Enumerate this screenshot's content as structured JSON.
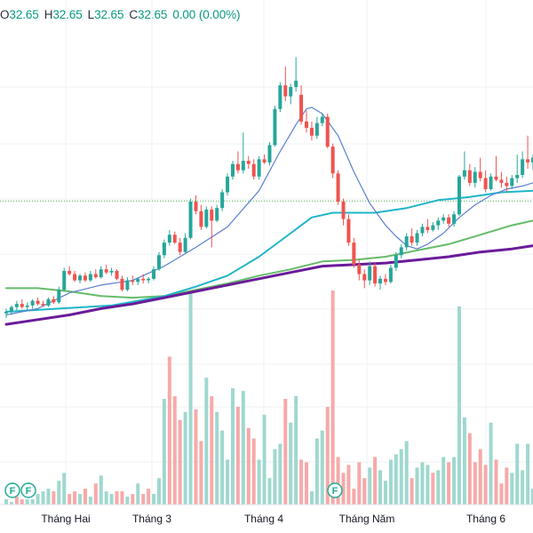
{
  "legend": {
    "o_label": "O",
    "o_value": "32.65",
    "h_label": "H",
    "h_value": "32.65",
    "l_label": "L",
    "l_value": "32.65",
    "c_label": "C",
    "c_value": "32.65",
    "change": "0.00 (0.00%)"
  },
  "colors": {
    "up": "#26a69a",
    "down": "#ef5350",
    "vol_up": "#9fd8cf",
    "vol_down": "#f7a9a9",
    "ma_blue": "#5b7fcf",
    "ma_cyan": "#1fb5c7",
    "ma_green": "#66bb6a",
    "ma_purple": "#6a1b9a",
    "price_line": "#4caf50",
    "marker": "#22ab94"
  },
  "markers": [
    {
      "label": "F",
      "x": 14
    },
    {
      "label": "F",
      "x": 32
    },
    {
      "label": "F",
      "x": 377
    }
  ],
  "chart_data": {
    "type": "candlestick",
    "x_ticks": [
      {
        "label": "Tháng Hai",
        "x": 74
      },
      {
        "label": "Tháng 3",
        "x": 171
      },
      {
        "label": "Tháng 4",
        "x": 297
      },
      {
        "label": "Tháng Năm",
        "x": 413
      },
      {
        "label": "Tháng 6",
        "x": 547
      }
    ],
    "price_line": 32.65,
    "price_range": [
      23.0,
      43.0
    ],
    "candles": [
      [
        0,
        25.5,
        25.8,
        25.2,
        25.6
      ],
      [
        1,
        25.6,
        26.0,
        25.4,
        25.9
      ],
      [
        2,
        25.9,
        26.3,
        25.7,
        26.1
      ],
      [
        3,
        26.1,
        26.4,
        25.8,
        25.9
      ],
      [
        4,
        25.9,
        26.2,
        25.7,
        26.0
      ],
      [
        5,
        26.0,
        26.4,
        25.8,
        26.3
      ],
      [
        6,
        26.3,
        26.5,
        26.0,
        26.1
      ],
      [
        7,
        26.1,
        26.3,
        25.9,
        26.0
      ],
      [
        8,
        26.0,
        26.5,
        25.9,
        26.4
      ],
      [
        9,
        26.4,
        26.6,
        26.1,
        26.2
      ],
      [
        10,
        26.2,
        27.2,
        26.1,
        27.0
      ],
      [
        11,
        27.0,
        28.4,
        26.9,
        28.2
      ],
      [
        12,
        28.2,
        28.5,
        27.9,
        28.0
      ],
      [
        13,
        28.0,
        28.2,
        27.5,
        27.6
      ],
      [
        14,
        27.6,
        28.0,
        27.4,
        27.9
      ],
      [
        15,
        27.9,
        28.1,
        27.5,
        27.6
      ],
      [
        16,
        27.6,
        28.2,
        27.5,
        28.0
      ],
      [
        17,
        28.0,
        28.3,
        27.7,
        27.8
      ],
      [
        18,
        27.8,
        28.5,
        27.7,
        28.3
      ],
      [
        19,
        28.3,
        28.6,
        28.0,
        28.1
      ],
      [
        20,
        28.1,
        28.4,
        27.9,
        28.2
      ],
      [
        21,
        28.2,
        28.3,
        27.6,
        27.7
      ],
      [
        22,
        27.7,
        27.9,
        26.9,
        27.0
      ],
      [
        23,
        27.0,
        27.8,
        26.9,
        27.6
      ],
      [
        24,
        27.6,
        27.9,
        27.3,
        27.5
      ],
      [
        25,
        27.5,
        27.8,
        27.3,
        27.7
      ],
      [
        26,
        27.7,
        28.0,
        27.4,
        27.6
      ],
      [
        27,
        27.6,
        27.8,
        27.4,
        27.7
      ],
      [
        28,
        27.7,
        28.5,
        27.6,
        28.3
      ],
      [
        29,
        28.3,
        29.4,
        28.2,
        29.2
      ],
      [
        30,
        29.2,
        30.2,
        29.0,
        30.0
      ],
      [
        31,
        30.0,
        30.8,
        29.8,
        30.5
      ],
      [
        32,
        30.5,
        30.7,
        29.9,
        30.0
      ],
      [
        33,
        30.0,
        30.3,
        29.2,
        29.4
      ],
      [
        34,
        29.4,
        30.6,
        29.3,
        30.3
      ],
      [
        35,
        30.3,
        32.8,
        30.2,
        32.6
      ],
      [
        36,
        32.6,
        33.0,
        31.8,
        32.0
      ],
      [
        37,
        32.0,
        32.4,
        30.8,
        31.0
      ],
      [
        38,
        31.0,
        32.3,
        30.9,
        32.1
      ],
      [
        39,
        32.1,
        32.3,
        29.7,
        31.4
      ],
      [
        40,
        31.4,
        32.4,
        31.3,
        32.2
      ],
      [
        41,
        32.2,
        33.4,
        32.0,
        33.2
      ],
      [
        42,
        33.2,
        34.4,
        33.0,
        34.2
      ],
      [
        43,
        34.2,
        35.2,
        34.0,
        35.0
      ],
      [
        44,
        35.0,
        35.8,
        34.4,
        34.6
      ],
      [
        45,
        34.6,
        37.0,
        34.4,
        35.2
      ],
      [
        46,
        35.2,
        35.5,
        34.7,
        35.0
      ],
      [
        47,
        35.0,
        35.3,
        34.0,
        34.2
      ],
      [
        48,
        34.2,
        35.5,
        34.0,
        35.3
      ],
      [
        49,
        35.3,
        35.6,
        35.0,
        35.1
      ],
      [
        50,
        35.1,
        36.4,
        34.9,
        36.2
      ],
      [
        51,
        36.2,
        38.7,
        36.1,
        38.5
      ],
      [
        52,
        38.5,
        40.2,
        38.3,
        40.0
      ],
      [
        53,
        40.0,
        41.2,
        39.0,
        39.3
      ],
      [
        54,
        39.3,
        40.1,
        38.8,
        39.9
      ],
      [
        55,
        39.9,
        41.8,
        39.6,
        40.3
      ],
      [
        56,
        39.4,
        40.0,
        37.5,
        37.7
      ],
      [
        57,
        37.7,
        38.4,
        37.0,
        37.3
      ],
      [
        58,
        37.3,
        37.7,
        36.5,
        36.8
      ],
      [
        59,
        36.8,
        38.0,
        36.6,
        37.6
      ],
      [
        60,
        37.6,
        38.2,
        37.4,
        38.0
      ],
      [
        61,
        38.0,
        38.2,
        36.0,
        36.1
      ],
      [
        62,
        36.1,
        36.3,
        34.1,
        34.4
      ],
      [
        63,
        34.4,
        34.6,
        32.4,
        32.6
      ],
      [
        64,
        32.6,
        32.8,
        31.1,
        31.5
      ],
      [
        65,
        31.5,
        31.8,
        29.8,
        30.0
      ],
      [
        66,
        30.0,
        30.3,
        28.4,
        28.6
      ],
      [
        67,
        28.6,
        28.9,
        27.6,
        28.0
      ],
      [
        68,
        28.0,
        28.3,
        27.1,
        27.6
      ],
      [
        69,
        27.6,
        28.8,
        27.3,
        28.5
      ],
      [
        70,
        28.5,
        28.7,
        27.2,
        27.4
      ],
      [
        71,
        27.4,
        27.9,
        27.0,
        27.7
      ],
      [
        72,
        27.7,
        28.0,
        27.3,
        27.5
      ],
      [
        73,
        27.5,
        28.6,
        27.4,
        28.4
      ],
      [
        74,
        28.4,
        29.4,
        28.2,
        29.2
      ],
      [
        75,
        29.2,
        29.9,
        29.0,
        29.7
      ],
      [
        76,
        29.7,
        30.6,
        29.5,
        30.4
      ],
      [
        77,
        30.4,
        30.9,
        29.8,
        30.0
      ],
      [
        78,
        30.0,
        30.8,
        29.8,
        30.6
      ],
      [
        79,
        30.6,
        31.2,
        30.4,
        31.0
      ],
      [
        80,
        31.0,
        31.5,
        30.6,
        30.8
      ],
      [
        81,
        30.8,
        31.3,
        30.7,
        31.1
      ],
      [
        82,
        31.1,
        31.6,
        30.8,
        31.4
      ],
      [
        83,
        31.4,
        31.8,
        31.2,
        31.6
      ],
      [
        84,
        31.6,
        31.8,
        31.0,
        31.2
      ],
      [
        85,
        31.2,
        32.0,
        31.0,
        31.8
      ],
      [
        86,
        31.8,
        34.3,
        31.7,
        34.2
      ],
      [
        87,
        34.2,
        35.8,
        34.0,
        34.6
      ],
      [
        88,
        34.6,
        35.0,
        33.6,
        33.8
      ],
      [
        89,
        33.8,
        34.8,
        33.5,
        34.5
      ],
      [
        90,
        34.5,
        35.4,
        33.9,
        34.1
      ],
      [
        91,
        34.1,
        34.6,
        33.2,
        33.4
      ],
      [
        92,
        33.4,
        34.4,
        33.3,
        34.2
      ],
      [
        93,
        34.2,
        35.5,
        33.9,
        34.0
      ],
      [
        94,
        34.0,
        34.5,
        33.5,
        33.8
      ],
      [
        95,
        33.8,
        34.2,
        33.2,
        33.6
      ],
      [
        96,
        33.6,
        34.3,
        33.4,
        34.1
      ],
      [
        97,
        34.1,
        35.6,
        33.8,
        34.3
      ],
      [
        98,
        34.3,
        35.8,
        34.1,
        35.3
      ],
      [
        99,
        35.3,
        36.8,
        34.7,
        35.1
      ],
      [
        100,
        35.1,
        35.6,
        34.6,
        35.4
      ]
    ],
    "volume": [
      [
        0,
        2,
        1
      ],
      [
        1,
        1,
        1
      ],
      [
        2,
        3,
        0
      ],
      [
        3,
        2,
        0
      ],
      [
        4,
        2,
        1
      ],
      [
        5,
        2,
        1
      ],
      [
        6,
        4,
        1
      ],
      [
        7,
        5,
        1
      ],
      [
        8,
        6,
        1
      ],
      [
        9,
        5,
        0
      ],
      [
        10,
        9,
        1
      ],
      [
        11,
        12,
        1
      ],
      [
        12,
        4,
        0
      ],
      [
        13,
        5,
        0
      ],
      [
        14,
        4,
        1
      ],
      [
        15,
        6,
        0
      ],
      [
        16,
        3,
        1
      ],
      [
        17,
        8,
        0
      ],
      [
        18,
        11,
        1
      ],
      [
        19,
        5,
        1
      ],
      [
        20,
        4,
        1
      ],
      [
        21,
        5,
        0
      ],
      [
        22,
        5,
        0
      ],
      [
        23,
        3,
        1
      ],
      [
        24,
        4,
        0
      ],
      [
        25,
        8,
        1
      ],
      [
        26,
        4,
        0
      ],
      [
        27,
        6,
        0
      ],
      [
        28,
        4,
        1
      ],
      [
        29,
        10,
        1
      ],
      [
        30,
        40,
        1
      ],
      [
        31,
        56,
        0
      ],
      [
        32,
        41,
        0
      ],
      [
        33,
        32,
        0
      ],
      [
        34,
        35,
        1
      ],
      [
        35,
        81,
        1
      ],
      [
        36,
        36,
        0
      ],
      [
        37,
        24,
        0
      ],
      [
        38,
        48,
        1
      ],
      [
        39,
        41,
        0
      ],
      [
        40,
        35,
        1
      ],
      [
        41,
        28,
        1
      ],
      [
        42,
        17,
        1
      ],
      [
        43,
        44,
        1
      ],
      [
        44,
        37,
        0
      ],
      [
        45,
        43,
        1
      ],
      [
        46,
        29,
        0
      ],
      [
        47,
        25,
        0
      ],
      [
        48,
        17,
        1
      ],
      [
        49,
        34,
        1
      ],
      [
        50,
        10,
        1
      ],
      [
        51,
        21,
        1
      ],
      [
        52,
        23,
        1
      ],
      [
        53,
        40,
        0
      ],
      [
        54,
        31,
        1
      ],
      [
        55,
        41,
        1
      ],
      [
        56,
        17,
        0
      ],
      [
        57,
        16,
        0
      ],
      [
        58,
        5,
        1
      ],
      [
        59,
        25,
        1
      ],
      [
        60,
        28,
        1
      ],
      [
        61,
        37,
        0
      ],
      [
        62,
        81,
        0
      ],
      [
        63,
        18,
        0
      ],
      [
        64,
        12,
        0
      ],
      [
        65,
        15,
        0
      ],
      [
        66,
        6,
        0
      ],
      [
        67,
        16,
        0
      ],
      [
        68,
        10,
        0
      ],
      [
        69,
        14,
        1
      ],
      [
        70,
        18,
        0
      ],
      [
        71,
        13,
        1
      ],
      [
        72,
        9,
        1
      ],
      [
        73,
        17,
        1
      ],
      [
        74,
        19,
        1
      ],
      [
        75,
        21,
        1
      ],
      [
        76,
        24,
        1
      ],
      [
        77,
        10,
        0
      ],
      [
        78,
        14,
        1
      ],
      [
        79,
        16,
        1
      ],
      [
        80,
        15,
        1
      ],
      [
        81,
        12,
        0
      ],
      [
        82,
        13,
        1
      ],
      [
        83,
        18,
        1
      ],
      [
        84,
        16,
        0
      ],
      [
        85,
        18,
        1
      ],
      [
        86,
        75,
        1
      ],
      [
        87,
        33,
        1
      ],
      [
        88,
        27,
        0
      ],
      [
        89,
        16,
        0
      ],
      [
        90,
        21,
        0
      ],
      [
        91,
        15,
        0
      ],
      [
        92,
        31,
        1
      ],
      [
        93,
        17,
        0
      ],
      [
        94,
        8,
        0
      ],
      [
        95,
        14,
        0
      ],
      [
        96,
        12,
        1
      ],
      [
        97,
        23,
        1
      ],
      [
        98,
        13,
        1
      ],
      [
        99,
        23,
        1
      ],
      [
        100,
        6,
        1
      ]
    ],
    "ma_blue": [
      [
        0,
        25.4
      ],
      [
        6,
        25.8
      ],
      [
        12,
        26.8
      ],
      [
        18,
        27.3
      ],
      [
        24,
        27.6
      ],
      [
        30,
        28.5
      ],
      [
        36,
        29.7
      ],
      [
        42,
        31.0
      ],
      [
        48,
        33.3
      ],
      [
        52,
        35.8
      ],
      [
        55,
        37.5
      ],
      [
        57,
        38.5
      ],
      [
        58,
        38.6
      ],
      [
        60,
        38.2
      ],
      [
        63,
        36.8
      ],
      [
        66,
        34.5
      ],
      [
        69,
        32.5
      ],
      [
        72,
        31.1
      ],
      [
        74,
        30.4
      ],
      [
        76,
        29.8
      ],
      [
        78,
        29.6
      ],
      [
        80,
        29.9
      ],
      [
        83,
        30.6
      ],
      [
        86,
        31.6
      ],
      [
        89,
        32.4
      ],
      [
        92,
        33.0
      ],
      [
        95,
        33.4
      ],
      [
        98,
        33.6
      ],
      [
        100,
        33.8
      ]
    ],
    "ma_cyan": [
      [
        0,
        25.6
      ],
      [
        10,
        25.8
      ],
      [
        20,
        26.0
      ],
      [
        30,
        26.6
      ],
      [
        36,
        27.2
      ],
      [
        42,
        27.9
      ],
      [
        48,
        29.1
      ],
      [
        54,
        30.6
      ],
      [
        58,
        31.6
      ],
      [
        62,
        31.9
      ],
      [
        66,
        31.9
      ],
      [
        70,
        31.9
      ],
      [
        76,
        32.2
      ],
      [
        82,
        32.7
      ],
      [
        88,
        32.9
      ],
      [
        94,
        33.2
      ],
      [
        100,
        33.3
      ]
    ],
    "ma_green": [
      [
        0,
        27.1
      ],
      [
        6,
        27.1
      ],
      [
        12,
        26.9
      ],
      [
        18,
        26.6
      ],
      [
        24,
        26.5
      ],
      [
        30,
        26.6
      ],
      [
        36,
        27.0
      ],
      [
        42,
        27.4
      ],
      [
        48,
        27.9
      ],
      [
        54,
        28.3
      ],
      [
        60,
        28.8
      ],
      [
        66,
        28.9
      ],
      [
        72,
        29.1
      ],
      [
        78,
        29.5
      ],
      [
        84,
        29.9
      ],
      [
        90,
        30.5
      ],
      [
        96,
        31.1
      ],
      [
        100,
        31.4
      ]
    ],
    "ma_purple": [
      [
        0,
        24.8
      ],
      [
        6,
        25.1
      ],
      [
        12,
        25.4
      ],
      [
        18,
        25.8
      ],
      [
        24,
        26.1
      ],
      [
        30,
        26.5
      ],
      [
        36,
        26.9
      ],
      [
        42,
        27.3
      ],
      [
        48,
        27.7
      ],
      [
        54,
        28.1
      ],
      [
        60,
        28.5
      ],
      [
        66,
        28.6
      ],
      [
        72,
        28.7
      ],
      [
        78,
        28.9
      ],
      [
        84,
        29.1
      ],
      [
        90,
        29.4
      ],
      [
        96,
        29.6
      ],
      [
        100,
        29.8
      ]
    ]
  }
}
